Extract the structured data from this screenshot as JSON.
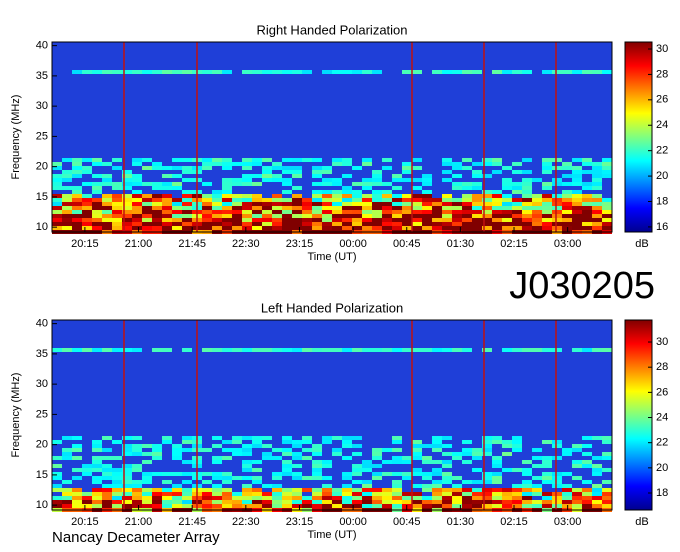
{
  "chart_data": [
    {
      "type": "spectrogram",
      "title": "Right Handed Polarization",
      "xlabel": "Time (UT)",
      "ylabel": "Frequency (MHz)",
      "colorbar_label": "dB",
      "xlim": [
        19.79,
        27.62
      ],
      "xticks": [
        {
          "value": 20.25,
          "label": "20:15"
        },
        {
          "value": 21.0,
          "label": "21:00"
        },
        {
          "value": 21.75,
          "label": "21:45"
        },
        {
          "value": 22.5,
          "label": "22:30"
        },
        {
          "value": 23.25,
          "label": "23:15"
        },
        {
          "value": 24.0,
          "label": "00:00"
        },
        {
          "value": 24.75,
          "label": "00:45"
        },
        {
          "value": 25.5,
          "label": "01:30"
        },
        {
          "value": 26.25,
          "label": "02:15"
        },
        {
          "value": 27.0,
          "label": "03:00"
        }
      ],
      "ylim": [
        9.2,
        40.6
      ],
      "yticks": [
        10,
        15,
        20,
        25,
        30,
        35,
        40
      ],
      "clim": [
        15.6,
        30.55
      ],
      "cticks": [
        16,
        18,
        20,
        22,
        24,
        26,
        28,
        30
      ]
    },
    {
      "type": "spectrogram",
      "title": "Left Handed Polarization",
      "xlabel": "Time (UT)",
      "ylabel": "Frequency (MHz)",
      "colorbar_label": "dB",
      "xlim": [
        19.79,
        27.62
      ],
      "xticks": [
        {
          "value": 20.25,
          "label": "20:15"
        },
        {
          "value": 21.0,
          "label": "21:00"
        },
        {
          "value": 21.75,
          "label": "21:45"
        },
        {
          "value": 22.5,
          "label": "22:30"
        },
        {
          "value": 23.25,
          "label": "23:15"
        },
        {
          "value": 24.0,
          "label": "00:00"
        },
        {
          "value": 24.75,
          "label": "00:45"
        },
        {
          "value": 25.5,
          "label": "01:30"
        },
        {
          "value": 26.25,
          "label": "02:15"
        },
        {
          "value": 27.0,
          "label": "03:00"
        }
      ],
      "ylim": [
        9.2,
        40.6
      ],
      "yticks": [
        10,
        15,
        20,
        25,
        30,
        35,
        40
      ],
      "clim": [
        16.65,
        31.75
      ],
      "cticks": [
        18,
        20,
        22,
        24,
        26,
        28,
        30
      ]
    }
  ],
  "file_id": "J030205",
  "instrument": "Nancay Decameter Array"
}
